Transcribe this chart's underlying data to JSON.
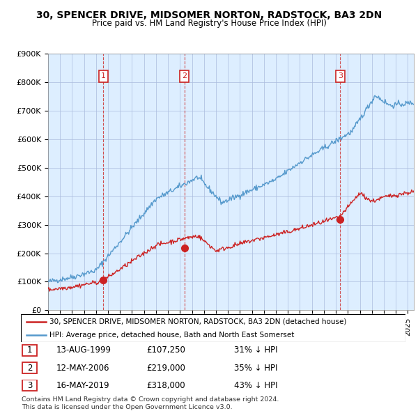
{
  "title": "30, SPENCER DRIVE, MIDSOMER NORTON, RADSTOCK, BA3 2DN",
  "subtitle": "Price paid vs. HM Land Registry's House Price Index (HPI)",
  "hpi_color": "#5599cc",
  "price_color": "#cc2222",
  "dashed_color": "#cc2222",
  "marker_color": "#cc2222",
  "chart_bg": "#ddeeff",
  "ylim": [
    0,
    900000
  ],
  "yticks": [
    0,
    100000,
    200000,
    300000,
    400000,
    500000,
    600000,
    700000,
    800000,
    900000
  ],
  "ytick_labels": [
    "£0",
    "£100K",
    "£200K",
    "£300K",
    "£400K",
    "£500K",
    "£600K",
    "£700K",
    "£800K",
    "£900K"
  ],
  "xlim_start": 1995.0,
  "xlim_end": 2025.5,
  "sales": [
    {
      "date_num": 1999.617,
      "price": 107250,
      "label": "1"
    },
    {
      "date_num": 2006.36,
      "price": 219000,
      "label": "2"
    },
    {
      "date_num": 2019.37,
      "price": 318000,
      "label": "3"
    }
  ],
  "legend_line1": "30, SPENCER DRIVE, MIDSOMER NORTON, RADSTOCK, BA3 2DN (detached house)",
  "legend_line2": "HPI: Average price, detached house, Bath and North East Somerset",
  "table_rows": [
    {
      "num": "1",
      "date": "13-AUG-1999",
      "price": "£107,250",
      "pct": "31% ↓ HPI"
    },
    {
      "num": "2",
      "date": "12-MAY-2006",
      "price": "£219,000",
      "pct": "35% ↓ HPI"
    },
    {
      "num": "3",
      "date": "16-MAY-2019",
      "price": "£318,000",
      "pct": "43% ↓ HPI"
    }
  ],
  "footer": "Contains HM Land Registry data © Crown copyright and database right 2024.\nThis data is licensed under the Open Government Licence v3.0."
}
